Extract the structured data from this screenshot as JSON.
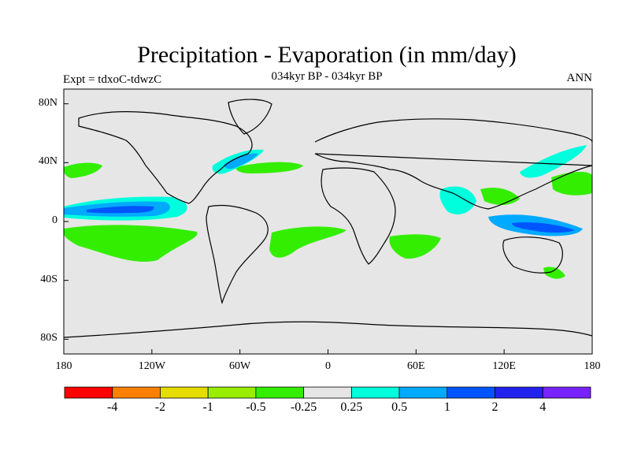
{
  "title": "Precipitation - Evaporation (in mm/day)",
  "subtitle": "034kyr BP - 034kyr BP",
  "experiment_label": "Expt = tdxoC-tdwzC",
  "season_label": "ANN",
  "map": {
    "projection": "cylindrical equidistant",
    "lon_range": [
      -180,
      180
    ],
    "lat_range": [
      -90,
      90
    ],
    "background_color": "#e6e6e6",
    "y_ticks": [
      {
        "label": "80N",
        "lat": 80
      },
      {
        "label": "40N",
        "lat": 40
      },
      {
        "label": "0",
        "lat": 0
      },
      {
        "label": "40S",
        "lat": -40
      },
      {
        "label": "80S",
        "lat": -80
      }
    ],
    "x_ticks": [
      {
        "label": "180",
        "lon": -180
      },
      {
        "label": "120W",
        "lon": -120
      },
      {
        "label": "60W",
        "lon": -60
      },
      {
        "label": "0",
        "lon": 0
      },
      {
        "label": "60E",
        "lon": 60
      },
      {
        "label": "120E",
        "lon": 120
      },
      {
        "label": "180",
        "lon": 180
      }
    ]
  },
  "colorbar": {
    "colors": [
      "#ff0000",
      "#ff8000",
      "#e6dc00",
      "#99ee00",
      "#33ee00",
      "#e6e6e6",
      "#00ffdd",
      "#00aaff",
      "#0055ff",
      "#2222ee",
      "#7722ff"
    ],
    "labels": [
      "-4",
      "-2",
      "-1",
      "-0.5",
      "-0.25",
      "0.25",
      "0.5",
      "1",
      "2",
      "4"
    ]
  }
}
